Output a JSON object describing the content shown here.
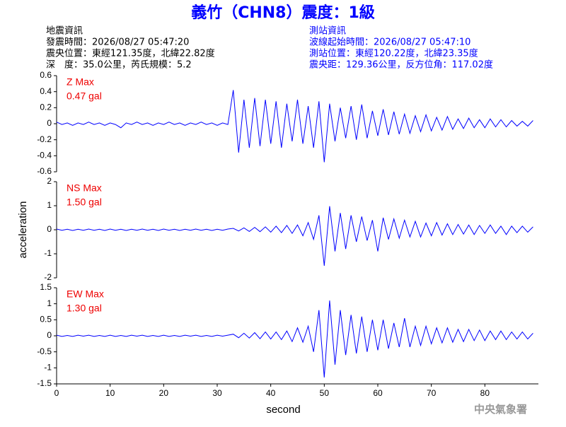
{
  "header": {
    "title": "義竹（CHN8）震度：1級",
    "left": [
      "地震資訊",
      "發震時間：2026/08/27 05:47:20",
      "震央位置：東經121.35度，北緯22.82度",
      "深　度：35.0公里，芮氏規模：5.2"
    ],
    "right": [
      "測站資訊",
      "波線起始時間：2026/08/27 05:47:10",
      "測站位置：東經120.22度，北緯23.35度",
      "震央距：129.36公里，反方位角：117.02度"
    ],
    "footer": "中央氣象署"
  },
  "chart_data": [
    {
      "type": "line",
      "label": "Z Max",
      "max_label": "0.47 gal",
      "color": "#0000ff",
      "xlim": [
        0,
        90
      ],
      "ylim": [
        -0.6,
        0.6
      ],
      "yticks": [
        0.6,
        0.4,
        0.2,
        0,
        -0.2,
        -0.4,
        -0.6
      ],
      "x": [
        0,
        1,
        2,
        3,
        4,
        5,
        6,
        7,
        8,
        9,
        10,
        11,
        12,
        13,
        14,
        15,
        16,
        17,
        18,
        19,
        20,
        21,
        22,
        23,
        24,
        25,
        26,
        27,
        28,
        29,
        30,
        31,
        32,
        33,
        34,
        35,
        36,
        37,
        38,
        39,
        40,
        41,
        42,
        43,
        44,
        45,
        46,
        47,
        48,
        49,
        50,
        51,
        52,
        53,
        54,
        55,
        56,
        57,
        58,
        59,
        60,
        61,
        62,
        63,
        64,
        65,
        66,
        67,
        68,
        69,
        70,
        71,
        72,
        73,
        74,
        75,
        76,
        77,
        78,
        79,
        80,
        81,
        82,
        83,
        84,
        85,
        86,
        87,
        88,
        89
      ],
      "values": [
        0.02,
        -0.01,
        0.01,
        -0.02,
        0.01,
        -0.01,
        0.02,
        -0.01,
        0.01,
        -0.02,
        0.01,
        -0.01,
        -0.05,
        0.01,
        -0.01,
        0.02,
        -0.01,
        0.01,
        -0.02,
        0.01,
        -0.01,
        0.02,
        -0.01,
        0.01,
        -0.02,
        0.01,
        -0.01,
        0.02,
        -0.01,
        0.01,
        -0.02,
        0.01,
        -0.01,
        0.42,
        -0.36,
        0.3,
        -0.3,
        0.32,
        -0.28,
        0.3,
        -0.25,
        0.28,
        -0.3,
        0.25,
        -0.22,
        0.3,
        -0.25,
        0.22,
        -0.3,
        0.28,
        -0.48,
        0.25,
        -0.22,
        0.2,
        -0.18,
        0.22,
        -0.2,
        0.24,
        -0.18,
        0.16,
        -0.15,
        0.18,
        -0.14,
        0.15,
        -0.13,
        0.12,
        -0.12,
        0.1,
        -0.1,
        0.11,
        -0.09,
        0.08,
        -0.08,
        0.09,
        -0.07,
        0.06,
        -0.06,
        0.07,
        -0.05,
        0.05,
        -0.05,
        0.06,
        -0.04,
        0.05,
        -0.04,
        0.04,
        -0.03,
        0.03,
        -0.03,
        0.04
      ]
    },
    {
      "type": "line",
      "label": "NS Max",
      "max_label": "1.50 gal",
      "color": "#0000ff",
      "xlim": [
        0,
        90
      ],
      "ylim": [
        -2,
        2
      ],
      "yticks": [
        2,
        1,
        0,
        -1,
        -2
      ],
      "ylabel": "acceleration",
      "x": [
        0,
        1,
        2,
        3,
        4,
        5,
        6,
        7,
        8,
        9,
        10,
        11,
        12,
        13,
        14,
        15,
        16,
        17,
        18,
        19,
        20,
        21,
        22,
        23,
        24,
        25,
        26,
        27,
        28,
        29,
        30,
        31,
        32,
        33,
        34,
        35,
        36,
        37,
        38,
        39,
        40,
        41,
        42,
        43,
        44,
        45,
        46,
        47,
        48,
        49,
        50,
        51,
        52,
        53,
        54,
        55,
        56,
        57,
        58,
        59,
        60,
        61,
        62,
        63,
        64,
        65,
        66,
        67,
        68,
        69,
        70,
        71,
        72,
        73,
        74,
        75,
        76,
        77,
        78,
        79,
        80,
        81,
        82,
        83,
        84,
        85,
        86,
        87,
        88,
        89
      ],
      "values": [
        0.03,
        -0.02,
        0.02,
        -0.03,
        0.02,
        -0.02,
        0.03,
        -0.02,
        0.02,
        -0.03,
        0.03,
        -0.02,
        0.02,
        -0.03,
        0.02,
        -0.02,
        0.03,
        -0.02,
        0.02,
        -0.03,
        0.03,
        -0.02,
        0.02,
        -0.03,
        0.02,
        -0.02,
        0.03,
        -0.02,
        0.02,
        -0.03,
        0.02,
        -0.02,
        0.03,
        0.06,
        -0.05,
        0.08,
        -0.07,
        0.1,
        -0.08,
        0.12,
        -0.1,
        0.15,
        -0.12,
        0.18,
        -0.15,
        0.2,
        -0.25,
        0.3,
        -0.4,
        0.6,
        -1.5,
        0.98,
        -0.9,
        0.7,
        -0.8,
        0.6,
        -0.5,
        0.55,
        -0.45,
        0.4,
        -0.9,
        0.5,
        -0.4,
        0.45,
        -0.35,
        0.4,
        -0.3,
        0.35,
        -0.3,
        0.28,
        -0.25,
        0.3,
        -0.22,
        0.25,
        -0.2,
        0.22,
        -0.18,
        0.2,
        -0.2,
        0.18,
        -0.15,
        0.2,
        -0.15,
        0.15,
        -0.2,
        0.15,
        -0.12,
        0.15,
        -0.1,
        0.12
      ]
    },
    {
      "type": "line",
      "label": "EW Max",
      "max_label": "1.30 gal",
      "color": "#0000ff",
      "xlim": [
        0,
        90
      ],
      "ylim": [
        -1.5,
        1.5
      ],
      "yticks": [
        1.5,
        1,
        0.5,
        0,
        -0.5,
        -1,
        -1.5
      ],
      "xticks": [
        0,
        10,
        20,
        30,
        40,
        50,
        60,
        70,
        80
      ],
      "xlabel": "second",
      "x": [
        0,
        1,
        2,
        3,
        4,
        5,
        6,
        7,
        8,
        9,
        10,
        11,
        12,
        13,
        14,
        15,
        16,
        17,
        18,
        19,
        20,
        21,
        22,
        23,
        24,
        25,
        26,
        27,
        28,
        29,
        30,
        31,
        32,
        33,
        34,
        35,
        36,
        37,
        38,
        39,
        40,
        41,
        42,
        43,
        44,
        45,
        46,
        47,
        48,
        49,
        50,
        51,
        52,
        53,
        54,
        55,
        56,
        57,
        58,
        59,
        60,
        61,
        62,
        63,
        64,
        65,
        66,
        67,
        68,
        69,
        70,
        71,
        72,
        73,
        74,
        75,
        76,
        77,
        78,
        79,
        80,
        81,
        82,
        83,
        84,
        85,
        86,
        87,
        88,
        89
      ],
      "values": [
        0.02,
        -0.02,
        0.01,
        -0.02,
        0.02,
        -0.01,
        0.02,
        -0.02,
        0.01,
        -0.02,
        0.02,
        -0.02,
        0.01,
        -0.02,
        0.02,
        -0.01,
        0.02,
        -0.02,
        0.01,
        -0.02,
        0.02,
        -0.02,
        0.01,
        -0.02,
        0.02,
        -0.01,
        0.02,
        -0.02,
        0.01,
        -0.02,
        0.02,
        -0.01,
        0.02,
        0.05,
        -0.06,
        0.08,
        -0.07,
        0.1,
        -0.09,
        0.12,
        -0.1,
        0.12,
        -0.12,
        0.15,
        -0.18,
        0.25,
        -0.2,
        0.3,
        -0.5,
        0.8,
        -1.3,
        1.1,
        -0.9,
        0.8,
        -0.6,
        0.65,
        -0.55,
        0.6,
        -0.5,
        0.5,
        -0.45,
        0.5,
        -0.4,
        0.4,
        -0.35,
        0.55,
        -0.35,
        0.3,
        -0.3,
        0.3,
        -0.25,
        0.25,
        -0.22,
        0.25,
        -0.2,
        0.2,
        -0.18,
        0.2,
        -0.15,
        0.18,
        -0.15,
        0.15,
        -0.12,
        0.15,
        -0.12,
        0.12,
        -0.1,
        0.12,
        -0.1,
        0.08
      ]
    }
  ]
}
